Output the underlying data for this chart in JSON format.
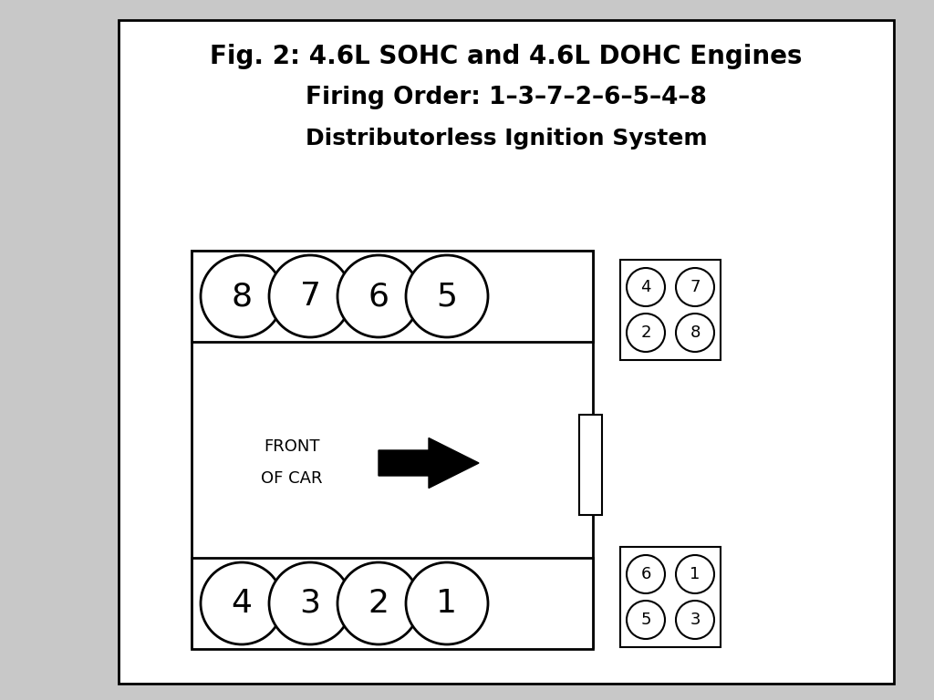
{
  "title_line1": "Fig. 2: 4.6L SOHC and 4.6L DOHC Engines",
  "title_line2": "Firing Order: 1–3–7–2–6–5–4–8",
  "title_line3": "Distributorless Ignition System",
  "bg_color": "#c8c8c8",
  "inner_bg": "#dcdcdc",
  "front_label_line1": "FRONT",
  "front_label_line2": "OF CAR",
  "top_row_cylinders": [
    "8",
    "7",
    "6",
    "5"
  ],
  "bottom_row_cylinders": [
    "4",
    "3",
    "2",
    "1"
  ],
  "top_coil_nums": [
    "4",
    "7",
    "2",
    "8"
  ],
  "bottom_coil_nums": [
    "6",
    "1",
    "5",
    "3"
  ]
}
